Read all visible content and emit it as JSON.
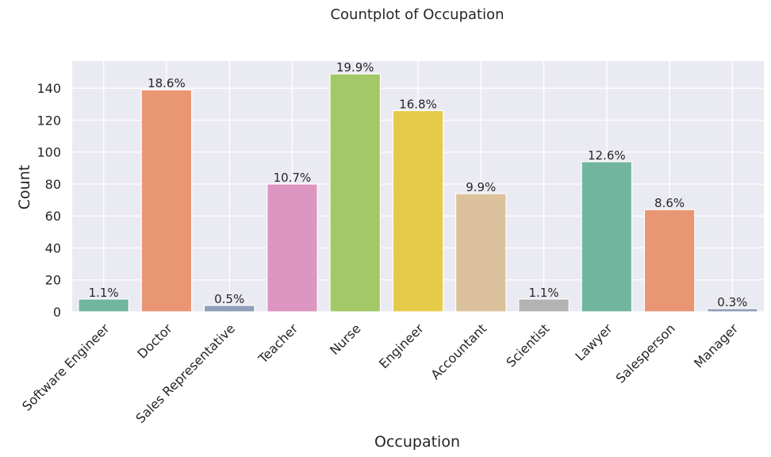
{
  "chart_data": {
    "type": "bar",
    "title": "Countplot of Occupation",
    "xlabel": "Occupation",
    "ylabel": "Count",
    "ylim": [
      0,
      157
    ],
    "yticks": [
      0,
      20,
      40,
      60,
      80,
      100,
      120,
      140
    ],
    "grid": true,
    "background": "#eaeaf2",
    "categories": [
      "Software Engineer",
      "Doctor",
      "Sales Representative",
      "Teacher",
      "Nurse",
      "Engineer",
      "Accountant",
      "Scientist",
      "Lawyer",
      "Salesperson",
      "Manager"
    ],
    "values": [
      8,
      139,
      4,
      80,
      149,
      126,
      74,
      8,
      94,
      64,
      2
    ],
    "data_labels": [
      "1.1%",
      "18.6%",
      "0.5%",
      "10.7%",
      "19.9%",
      "16.8%",
      "9.9%",
      "1.1%",
      "12.6%",
      "8.6%",
      "0.3%"
    ],
    "colors": [
      "#72b59f",
      "#e99675",
      "#8f9fb9",
      "#dc96c1",
      "#a2c867",
      "#e6cb4a",
      "#dbc19c",
      "#b3b3b3",
      "#72b59f",
      "#e99675",
      "#8f9fb9"
    ]
  }
}
